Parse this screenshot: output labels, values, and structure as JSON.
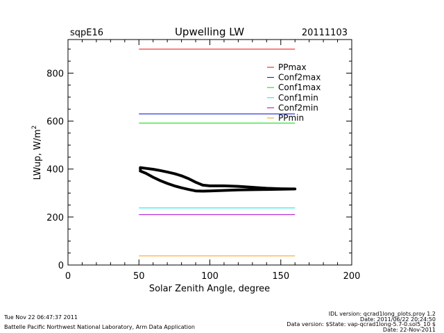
{
  "chart_data": {
    "type": "line",
    "title": "Upwelling LW",
    "site_label": "sqpE16",
    "date_label": "20111103",
    "xlabel": "Solar Zenith Angle, degree",
    "ylabel": "LWup, W/m",
    "ylabel_sup": "2",
    "xlim": [
      0,
      200
    ],
    "ylim": [
      0,
      940
    ],
    "x_ticks": [
      0,
      50,
      100,
      150,
      200
    ],
    "x_tick_labels": [
      "0",
      "50",
      "100",
      "150",
      "200"
    ],
    "y_ticks": [
      0,
      200,
      400,
      600,
      800
    ],
    "y_tick_labels": [
      "0",
      "200",
      "400",
      "600",
      "800"
    ],
    "grid": false,
    "legend_position": "top-right",
    "limits": [
      {
        "name": "PPmax",
        "value": 900,
        "x": [
          50,
          160
        ],
        "color": "#ff0000"
      },
      {
        "name": "Conf2max",
        "value": 630,
        "x": [
          50,
          160
        ],
        "color": "#0000cc"
      },
      {
        "name": "Conf1max",
        "value": 592,
        "x": [
          50,
          160
        ],
        "color": "#00dd00"
      },
      {
        "name": "Conf1min",
        "value": 238,
        "x": [
          50,
          160
        ],
        "color": "#00e5e5"
      },
      {
        "name": "Conf2min",
        "value": 210,
        "x": [
          50,
          160
        ],
        "color": "#aa00cc"
      },
      {
        "name": "PPmin",
        "value": 38,
        "x": [
          50,
          160
        ],
        "color": "#ff9900"
      }
    ],
    "series": [
      {
        "color": "#000000",
        "x": [
          51,
          55,
          60,
          65,
          70,
          75,
          80,
          85,
          90,
          95,
          100,
          110,
          120,
          130,
          140,
          150,
          160,
          150,
          140,
          130,
          120,
          110,
          100,
          95,
          90,
          85,
          80,
          75,
          70,
          65,
          60,
          55,
          51,
          51
        ],
        "y": [
          392,
          382,
          366,
          352,
          340,
          330,
          322,
          315,
          309,
          308,
          309,
          311,
          313,
          314,
          315,
          316,
          317,
          318,
          320,
          324,
          328,
          330,
          330,
          333,
          345,
          360,
          372,
          381,
          388,
          394,
          399,
          403,
          406,
          398
        ]
      }
    ]
  },
  "footer": {
    "timestamp": "Tue Nov 22 06:47:37 2011",
    "org": "Battelle Pacific Northwest National Laboratory, Arm Data Application",
    "idl_version": "IDL version: qcrad1long_plots.proy 1.2",
    "idl_date": "Date: 2011/06/22 20:24:50",
    "data_version": "Data version: $State: vap-qcrad1long-5.7-0.sol5_10 $",
    "run_date": "Date: 22-Nov-2011"
  }
}
